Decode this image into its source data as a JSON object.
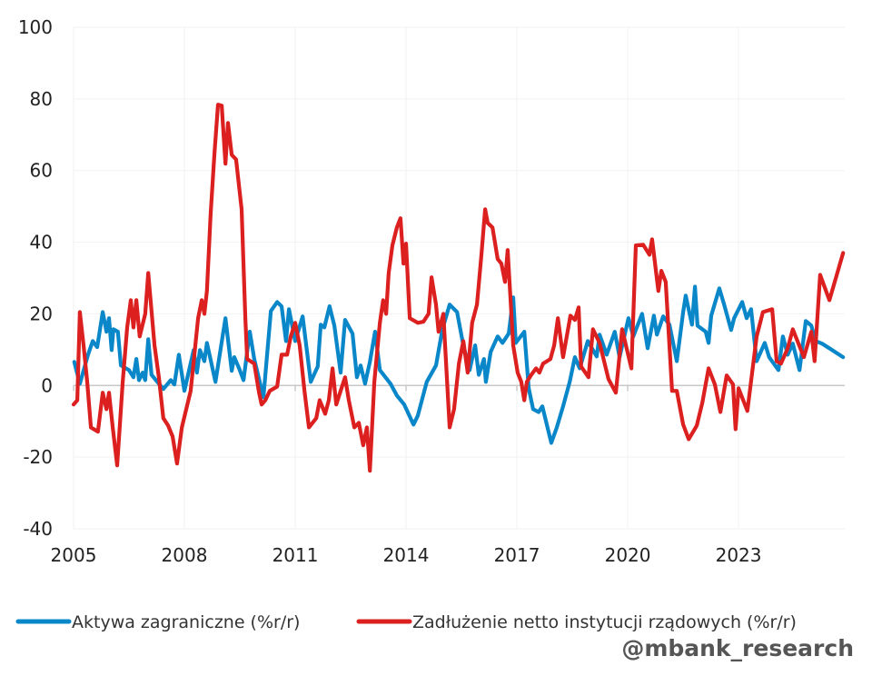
{
  "chart_data": {
    "type": "line",
    "title": "",
    "xlabel": "",
    "ylabel": "",
    "ylim": [
      -40,
      100
    ],
    "xlim": [
      2005,
      2025.9
    ],
    "yticks": [
      "100",
      "80",
      "60",
      "40",
      "20",
      "0",
      "-20",
      "-40"
    ],
    "ytick_values": [
      100,
      80,
      60,
      40,
      20,
      0,
      -20,
      -40
    ],
    "xticks": [
      "2005",
      "2008",
      "2011",
      "2014",
      "2017",
      "2020",
      "2023"
    ],
    "xtick_values": [
      2005,
      2008,
      2011,
      2014,
      2017,
      2020,
      2023
    ],
    "grid": true,
    "legend_position": "bottom",
    "series": [
      {
        "name": "Aktywa zagraniczne (%r/r)",
        "color": "#0a87c9",
        "points": [
          [
            2005.02,
            6.6
          ],
          [
            2005.17,
            0.5
          ],
          [
            2005.39,
            8.6
          ],
          [
            2005.52,
            12.4
          ],
          [
            2005.64,
            10.7
          ],
          [
            2005.79,
            20.5
          ],
          [
            2005.89,
            15.0
          ],
          [
            2005.96,
            18.8
          ],
          [
            2006.03,
            9.9
          ],
          [
            2006.08,
            15.7
          ],
          [
            2006.2,
            15.0
          ],
          [
            2006.28,
            5.6
          ],
          [
            2006.5,
            4.3
          ],
          [
            2006.62,
            2.3
          ],
          [
            2006.7,
            7.4
          ],
          [
            2006.77,
            1.5
          ],
          [
            2006.87,
            3.6
          ],
          [
            2006.94,
            1.5
          ],
          [
            2007.02,
            12.9
          ],
          [
            2007.11,
            3.0
          ],
          [
            2007.43,
            -1.0
          ],
          [
            2007.63,
            1.5
          ],
          [
            2007.73,
            0.3
          ],
          [
            2007.85,
            8.6
          ],
          [
            2008.0,
            -1.5
          ],
          [
            2008.25,
            9.9
          ],
          [
            2008.34,
            3.6
          ],
          [
            2008.42,
            9.9
          ],
          [
            2008.54,
            6.8
          ],
          [
            2008.61,
            11.9
          ],
          [
            2008.84,
            1.0
          ],
          [
            2009.11,
            18.8
          ],
          [
            2009.28,
            4.1
          ],
          [
            2009.35,
            7.9
          ],
          [
            2009.48,
            4.8
          ],
          [
            2009.6,
            1.5
          ],
          [
            2009.77,
            15.0
          ],
          [
            2009.89,
            7.4
          ],
          [
            2010.14,
            -3.3
          ],
          [
            2010.34,
            20.8
          ],
          [
            2010.51,
            23.3
          ],
          [
            2010.63,
            22.1
          ],
          [
            2010.75,
            12.4
          ],
          [
            2010.83,
            21.3
          ],
          [
            2011.0,
            12.4
          ],
          [
            2011.2,
            19.3
          ],
          [
            2011.42,
            1.0
          ],
          [
            2011.61,
            5.3
          ],
          [
            2011.69,
            17.0
          ],
          [
            2011.79,
            16.2
          ],
          [
            2011.93,
            22.1
          ],
          [
            2012.06,
            16.7
          ],
          [
            2012.23,
            3.6
          ],
          [
            2012.35,
            18.3
          ],
          [
            2012.55,
            14.5
          ],
          [
            2012.67,
            2.3
          ],
          [
            2012.77,
            5.6
          ],
          [
            2012.89,
            0.5
          ],
          [
            2013.02,
            6.6
          ],
          [
            2013.16,
            15.0
          ],
          [
            2013.29,
            4.3
          ],
          [
            2013.58,
            0.5
          ],
          [
            2013.75,
            -2.8
          ],
          [
            2013.95,
            -5.3
          ],
          [
            2014.2,
            -10.9
          ],
          [
            2014.32,
            -8.4
          ],
          [
            2014.56,
            1.0
          ],
          [
            2014.81,
            5.6
          ],
          [
            2014.98,
            15.5
          ],
          [
            2015.18,
            22.6
          ],
          [
            2015.38,
            20.5
          ],
          [
            2015.55,
            11.2
          ],
          [
            2015.72,
            4.3
          ],
          [
            2015.87,
            11.2
          ],
          [
            2015.97,
            3.0
          ],
          [
            2016.11,
            7.4
          ],
          [
            2016.16,
            1.0
          ],
          [
            2016.29,
            9.4
          ],
          [
            2016.48,
            13.7
          ],
          [
            2016.61,
            11.9
          ],
          [
            2016.78,
            14.5
          ],
          [
            2016.9,
            24.6
          ],
          [
            2016.97,
            11.9
          ],
          [
            2017.2,
            15.0
          ],
          [
            2017.32,
            -0.8
          ],
          [
            2017.44,
            -6.6
          ],
          [
            2017.59,
            -7.4
          ],
          [
            2017.69,
            -5.8
          ],
          [
            2017.93,
            -16.0
          ],
          [
            2018.08,
            -11.7
          ],
          [
            2018.25,
            -5.8
          ],
          [
            2018.43,
            1.0
          ],
          [
            2018.57,
            7.9
          ],
          [
            2018.7,
            4.8
          ],
          [
            2018.92,
            12.4
          ],
          [
            2019.16,
            8.1
          ],
          [
            2019.24,
            14.2
          ],
          [
            2019.43,
            8.6
          ],
          [
            2019.65,
            15.0
          ],
          [
            2019.78,
            7.9
          ],
          [
            2020.02,
            18.8
          ],
          [
            2020.15,
            13.7
          ],
          [
            2020.39,
            20.0
          ],
          [
            2020.54,
            10.4
          ],
          [
            2020.71,
            19.5
          ],
          [
            2020.79,
            14.2
          ],
          [
            2020.96,
            19.3
          ],
          [
            2021.13,
            17.0
          ],
          [
            2021.33,
            6.8
          ],
          [
            2021.5,
            20.5
          ],
          [
            2021.57,
            25.1
          ],
          [
            2021.74,
            17.0
          ],
          [
            2021.82,
            27.6
          ],
          [
            2021.89,
            16.7
          ],
          [
            2022.11,
            15.0
          ],
          [
            2022.19,
            11.9
          ],
          [
            2022.26,
            19.5
          ],
          [
            2022.48,
            27.1
          ],
          [
            2022.61,
            22.6
          ],
          [
            2022.8,
            15.5
          ],
          [
            2022.88,
            18.8
          ],
          [
            2023.1,
            23.3
          ],
          [
            2023.22,
            18.8
          ],
          [
            2023.34,
            21.3
          ],
          [
            2023.49,
            6.8
          ],
          [
            2023.71,
            11.9
          ],
          [
            2023.83,
            7.9
          ],
          [
            2024.08,
            4.3
          ],
          [
            2024.2,
            13.7
          ],
          [
            2024.33,
            8.6
          ],
          [
            2024.47,
            11.7
          ],
          [
            2024.65,
            4.3
          ],
          [
            2024.82,
            18.0
          ],
          [
            2024.97,
            16.7
          ],
          [
            2025.09,
            12.4
          ],
          [
            2025.26,
            11.7
          ],
          [
            2025.46,
            10.4
          ],
          [
            2025.83,
            7.9
          ]
        ]
      },
      {
        "name": "Zadłużenie netto instytucji rządowych (%r/r)",
        "color": "#dc1f1f",
        "points": [
          [
            2005.0,
            -5.3
          ],
          [
            2005.1,
            -4.1
          ],
          [
            2005.17,
            20.5
          ],
          [
            2005.27,
            11.2
          ],
          [
            2005.37,
            1.0
          ],
          [
            2005.47,
            -11.7
          ],
          [
            2005.66,
            -12.9
          ],
          [
            2005.79,
            -2.0
          ],
          [
            2005.89,
            -6.6
          ],
          [
            2005.96,
            -2.0
          ],
          [
            2006.06,
            -11.7
          ],
          [
            2006.18,
            -22.3
          ],
          [
            2006.33,
            1.0
          ],
          [
            2006.45,
            16.2
          ],
          [
            2006.55,
            23.8
          ],
          [
            2006.62,
            16.2
          ],
          [
            2006.7,
            23.8
          ],
          [
            2006.79,
            13.7
          ],
          [
            2006.94,
            20.0
          ],
          [
            2007.02,
            31.4
          ],
          [
            2007.19,
            11.2
          ],
          [
            2007.31,
            2.3
          ],
          [
            2007.43,
            -9.1
          ],
          [
            2007.56,
            -11.2
          ],
          [
            2007.68,
            -14.2
          ],
          [
            2007.8,
            -21.8
          ],
          [
            2007.93,
            -11.7
          ],
          [
            2008.17,
            -1.5
          ],
          [
            2008.37,
            18.8
          ],
          [
            2008.47,
            23.8
          ],
          [
            2008.54,
            20.0
          ],
          [
            2008.61,
            26.4
          ],
          [
            2008.71,
            47.9
          ],
          [
            2008.81,
            64.4
          ],
          [
            2008.91,
            78.4
          ],
          [
            2009.01,
            78.1
          ],
          [
            2009.11,
            61.9
          ],
          [
            2009.18,
            73.3
          ],
          [
            2009.28,
            64.4
          ],
          [
            2009.4,
            63.1
          ],
          [
            2009.55,
            49.2
          ],
          [
            2009.65,
            18.8
          ],
          [
            2009.7,
            7.4
          ],
          [
            2009.89,
            6.1
          ],
          [
            2010.02,
            -2.0
          ],
          [
            2010.09,
            -5.3
          ],
          [
            2010.19,
            -4.1
          ],
          [
            2010.31,
            -1.5
          ],
          [
            2010.51,
            -0.3
          ],
          [
            2010.63,
            8.6
          ],
          [
            2010.78,
            8.6
          ],
          [
            2010.88,
            13.7
          ],
          [
            2011.0,
            17.5
          ],
          [
            2011.12,
            11.2
          ],
          [
            2011.25,
            -1.5
          ],
          [
            2011.37,
            -11.7
          ],
          [
            2011.57,
            -9.1
          ],
          [
            2011.66,
            -4.1
          ],
          [
            2011.81,
            -7.9
          ],
          [
            2011.91,
            -4.1
          ],
          [
            2012.01,
            4.8
          ],
          [
            2012.11,
            -5.3
          ],
          [
            2012.23,
            -1.5
          ],
          [
            2012.35,
            2.3
          ],
          [
            2012.45,
            -4.1
          ],
          [
            2012.6,
            -11.7
          ],
          [
            2012.72,
            -10.4
          ],
          [
            2012.84,
            -16.7
          ],
          [
            2012.94,
            -11.7
          ],
          [
            2013.02,
            -23.8
          ],
          [
            2013.14,
            1.0
          ],
          [
            2013.29,
            17.5
          ],
          [
            2013.38,
            23.8
          ],
          [
            2013.46,
            20.0
          ],
          [
            2013.53,
            31.4
          ],
          [
            2013.63,
            39.1
          ],
          [
            2013.75,
            44.1
          ],
          [
            2013.85,
            46.7
          ],
          [
            2013.93,
            34.0
          ],
          [
            2014.0,
            39.6
          ],
          [
            2014.1,
            18.8
          ],
          [
            2014.32,
            17.5
          ],
          [
            2014.47,
            17.8
          ],
          [
            2014.61,
            20.0
          ],
          [
            2014.69,
            30.2
          ],
          [
            2014.81,
            22.6
          ],
          [
            2014.88,
            15.0
          ],
          [
            2015.01,
            20.0
          ],
          [
            2015.18,
            -11.7
          ],
          [
            2015.3,
            -6.6
          ],
          [
            2015.43,
            6.1
          ],
          [
            2015.55,
            12.4
          ],
          [
            2015.67,
            3.6
          ],
          [
            2015.79,
            17.5
          ],
          [
            2015.92,
            22.6
          ],
          [
            2016.04,
            36.5
          ],
          [
            2016.14,
            49.2
          ],
          [
            2016.21,
            45.4
          ],
          [
            2016.34,
            44.1
          ],
          [
            2016.48,
            35.3
          ],
          [
            2016.58,
            34.0
          ],
          [
            2016.68,
            28.9
          ],
          [
            2016.75,
            37.8
          ],
          [
            2016.9,
            11.2
          ],
          [
            2017.02,
            3.6
          ],
          [
            2017.12,
            1.0
          ],
          [
            2017.2,
            -4.1
          ],
          [
            2017.27,
            1.0
          ],
          [
            2017.39,
            3.0
          ],
          [
            2017.52,
            4.8
          ],
          [
            2017.61,
            3.6
          ],
          [
            2017.71,
            6.1
          ],
          [
            2017.91,
            7.4
          ],
          [
            2018.01,
            11.2
          ],
          [
            2018.11,
            18.8
          ],
          [
            2018.25,
            7.9
          ],
          [
            2018.45,
            19.5
          ],
          [
            2018.57,
            18.3
          ],
          [
            2018.67,
            21.8
          ],
          [
            2018.74,
            5.3
          ],
          [
            2018.94,
            2.3
          ],
          [
            2019.06,
            15.7
          ],
          [
            2019.24,
            11.9
          ],
          [
            2019.48,
            1.8
          ],
          [
            2019.68,
            -2.0
          ],
          [
            2019.85,
            15.7
          ],
          [
            2020.1,
            4.8
          ],
          [
            2020.22,
            39.1
          ],
          [
            2020.42,
            39.3
          ],
          [
            2020.59,
            36.5
          ],
          [
            2020.66,
            40.8
          ],
          [
            2020.83,
            26.4
          ],
          [
            2020.91,
            32.0
          ],
          [
            2021.03,
            28.9
          ],
          [
            2021.2,
            -1.5
          ],
          [
            2021.33,
            -1.5
          ],
          [
            2021.5,
            -10.9
          ],
          [
            2021.65,
            -15.0
          ],
          [
            2021.87,
            -11.2
          ],
          [
            2022.02,
            -4.8
          ],
          [
            2022.19,
            4.8
          ],
          [
            2022.36,
            0.3
          ],
          [
            2022.51,
            -7.4
          ],
          [
            2022.68,
            2.8
          ],
          [
            2022.85,
            0.3
          ],
          [
            2022.92,
            -12.2
          ],
          [
            2023.0,
            -0.8
          ],
          [
            2023.24,
            -7.1
          ],
          [
            2023.49,
            13.7
          ],
          [
            2023.66,
            20.5
          ],
          [
            2023.91,
            21.3
          ],
          [
            2024.03,
            6.8
          ],
          [
            2024.15,
            6.1
          ],
          [
            2024.33,
            10.4
          ],
          [
            2024.47,
            15.7
          ],
          [
            2024.77,
            7.9
          ],
          [
            2024.97,
            15.0
          ],
          [
            2025.06,
            6.8
          ],
          [
            2025.21,
            30.9
          ],
          [
            2025.46,
            23.8
          ],
          [
            2025.83,
            37.0
          ]
        ]
      }
    ]
  },
  "watermark": "@mbank_research"
}
